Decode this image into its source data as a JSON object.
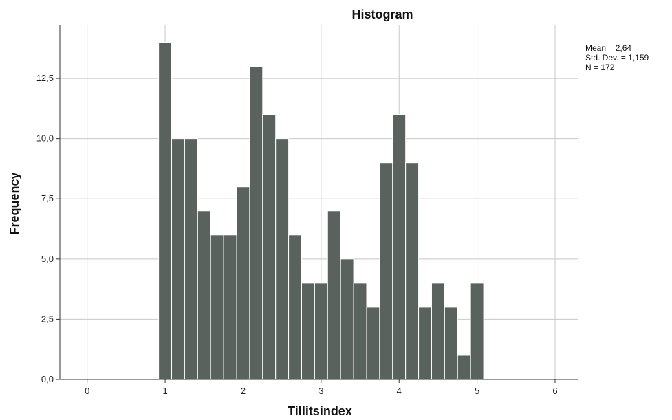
{
  "chart_data": {
    "type": "bar",
    "title": "Histogram",
    "xlabel": "Tillitsindex",
    "ylabel": "Frequency",
    "xlim": [
      -0.35,
      6.3
    ],
    "ylim": [
      0,
      14.7
    ],
    "x_ticks": [
      0,
      1,
      2,
      3,
      4,
      5,
      6
    ],
    "x_tick_labels": [
      "0",
      "1",
      "2",
      "3",
      "4",
      "5",
      "6"
    ],
    "y_ticks": [
      0,
      2.5,
      5,
      7.5,
      10,
      12.5
    ],
    "y_tick_labels": [
      "0,0",
      "2,5",
      "5,0",
      "7,5",
      "10,0",
      "12,5"
    ],
    "grid": true,
    "bar_color": "#5a625d",
    "bin_width": 0.1667,
    "bins": [
      {
        "x0": 0.9167,
        "value": 14
      },
      {
        "x0": 1.0833,
        "value": 10
      },
      {
        "x0": 1.25,
        "value": 10
      },
      {
        "x0": 1.4167,
        "value": 7
      },
      {
        "x0": 1.5833,
        "value": 6
      },
      {
        "x0": 1.75,
        "value": 6
      },
      {
        "x0": 1.9167,
        "value": 8
      },
      {
        "x0": 2.0833,
        "value": 13
      },
      {
        "x0": 2.25,
        "value": 11
      },
      {
        "x0": 2.4167,
        "value": 10
      },
      {
        "x0": 2.5833,
        "value": 6
      },
      {
        "x0": 2.75,
        "value": 4
      },
      {
        "x0": 2.9167,
        "value": 4
      },
      {
        "x0": 3.0833,
        "value": 7
      },
      {
        "x0": 3.25,
        "value": 5
      },
      {
        "x0": 3.4167,
        "value": 4
      },
      {
        "x0": 3.5833,
        "value": 3
      },
      {
        "x0": 3.75,
        "value": 9
      },
      {
        "x0": 3.9167,
        "value": 11
      },
      {
        "x0": 4.0833,
        "value": 9
      },
      {
        "x0": 4.25,
        "value": 3
      },
      {
        "x0": 4.4167,
        "value": 4
      },
      {
        "x0": 4.5833,
        "value": 3
      },
      {
        "x0": 4.75,
        "value": 1
      },
      {
        "x0": 4.9167,
        "value": 4
      }
    ],
    "stats": {
      "mean": "Mean = 2,64",
      "std_dev": "Std. Dev. = 1,159",
      "n": "N = 172"
    }
  }
}
